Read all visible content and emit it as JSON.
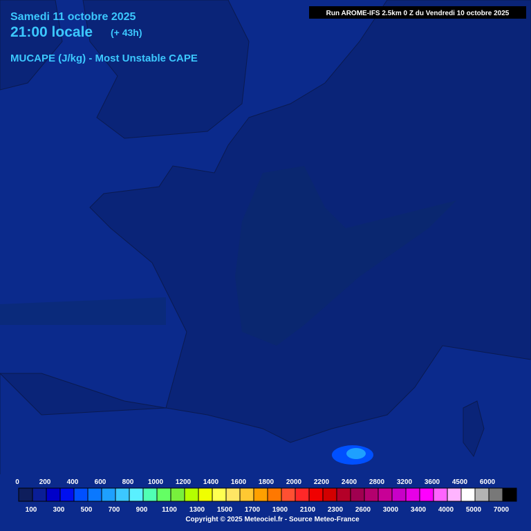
{
  "header": {
    "date": "Samedi 11 octobre 2025",
    "time": "21:00 locale",
    "lead": "(+ 43h)",
    "parameter": "MUCAPE (J/kg) - Most Unstable CAPE",
    "run": "Run AROME-IFS 2.5km 0 Z du Vendredi 10 octobre 2025"
  },
  "legend": {
    "levels": [
      0,
      100,
      200,
      300,
      400,
      500,
      600,
      700,
      800,
      900,
      1000,
      1100,
      1200,
      1300,
      1400,
      1500,
      1600,
      1700,
      1800,
      1900,
      2000,
      2100,
      2200,
      2300,
      2400,
      2600,
      2800,
      3000,
      3200,
      3400,
      3600,
      4000,
      4500,
      5000,
      6000,
      7000
    ],
    "colors": [
      "#0e1e5c",
      "#0a1e96",
      "#0000c8",
      "#0010f0",
      "#0050ff",
      "#0a78ff",
      "#1ea0ff",
      "#3cc8ff",
      "#5af0ff",
      "#50ffb4",
      "#64ff64",
      "#78f03c",
      "#b4ff00",
      "#f0ff00",
      "#ffff50",
      "#ffe664",
      "#ffc832",
      "#ffa000",
      "#ff7800",
      "#ff5032",
      "#ff2828",
      "#f00000",
      "#d20000",
      "#b40028",
      "#a00050",
      "#b4006e",
      "#c80096",
      "#c800c8",
      "#e600e6",
      "#ff00ff",
      "#ff64ff",
      "#ffb4ff",
      "#ffffff",
      "#b4b4b4",
      "#787878",
      "#000000"
    ]
  },
  "footer": {
    "copyright": "Copyright © 2025 Meteociel.fr - Source Meteo-France"
  }
}
